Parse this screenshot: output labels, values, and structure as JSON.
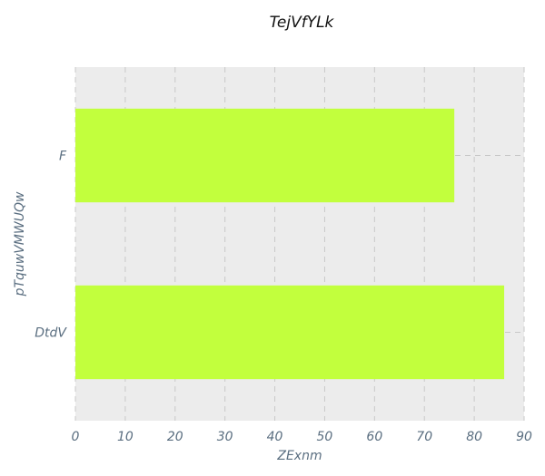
{
  "chart_data": {
    "type": "bar",
    "orientation": "horizontal",
    "title": "TejVfYLk",
    "xlabel": "ZExnm",
    "ylabel": "pTquwVMWUQw",
    "categories": [
      "F",
      "DtdV"
    ],
    "values": [
      76,
      86
    ],
    "xlim": [
      0,
      90
    ],
    "xticks": [
      0,
      10,
      20,
      30,
      40,
      50,
      60,
      70,
      80,
      90
    ],
    "grid": true,
    "legend": "none",
    "bar_color": "#c2ff3d",
    "plot_background": "#ececec"
  }
}
